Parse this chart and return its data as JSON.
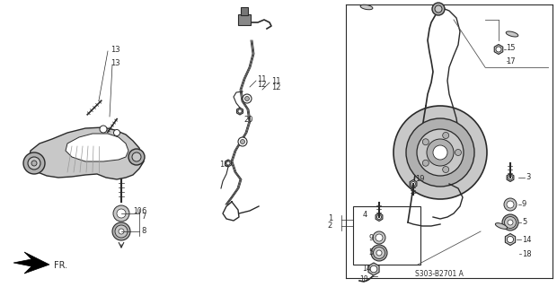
{
  "bg_color": "#ffffff",
  "diagram_code": "S303-B2701 A",
  "fr_label": "FR.",
  "lc": "#2a2a2a",
  "gray1": "#c8c8c8",
  "gray2": "#b0b0b0",
  "gray3": "#909090"
}
